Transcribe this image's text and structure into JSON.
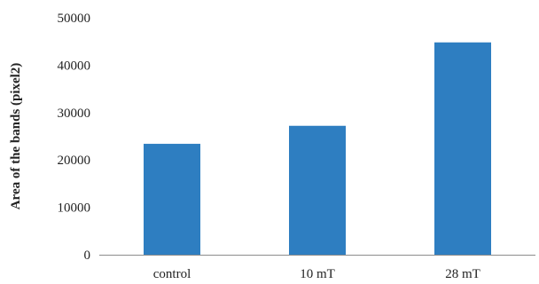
{
  "chart_data": {
    "type": "bar",
    "categories": [
      "control",
      "10 mT",
      "28 mT"
    ],
    "values": [
      23400,
      27200,
      44800
    ],
    "xlabel": "",
    "ylabel": "Area of the bands  (pixel2)",
    "ylim": [
      0,
      50000
    ],
    "yticks": [
      0,
      10000,
      20000,
      30000,
      40000,
      50000
    ],
    "grid": false,
    "legend": "none",
    "bar_color": "#2E7EC1",
    "axis_color": "#8C8C8C"
  }
}
